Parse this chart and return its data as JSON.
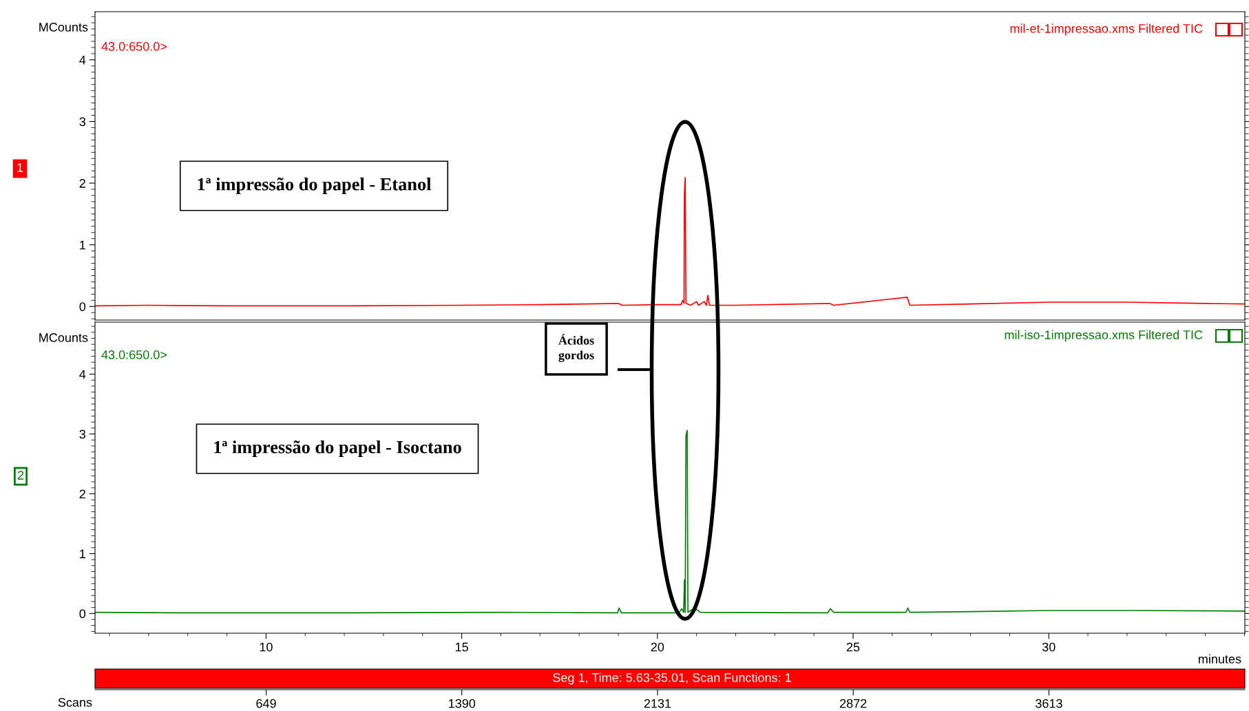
{
  "chart_data": [
    {
      "type": "line",
      "ylabel": "MCounts",
      "xlim": [
        5.63,
        35.01
      ],
      "xticks": [
        10,
        15,
        20,
        25,
        30
      ],
      "ylim": [
        -0.22,
        4.78
      ],
      "yticks": [
        0,
        1,
        2,
        3,
        4
      ],
      "tick_labels": "y",
      "grid": false,
      "legend": false,
      "annotations": [
        "43.0:650.0>",
        "mil-et-1impressao.xms Filtered TIC",
        "1",
        "1ª impressão do papel - Etanol"
      ],
      "series": [
        {
          "color": "#ff0000",
          "x": [
            5.63,
            7,
            9,
            12,
            15,
            17,
            19,
            19.1,
            20,
            20.6,
            20.65,
            20.68,
            20.69,
            20.71,
            20.73,
            20.85,
            21.0,
            21.05,
            21.2,
            21.25,
            21.29,
            21.33,
            22,
            24.4,
            24.5,
            26.38,
            26.45,
            28,
            30,
            32,
            34,
            35.01
          ],
          "values": [
            0.01,
            0.02,
            0.01,
            0.01,
            0.02,
            0.03,
            0.05,
            0.02,
            0.03,
            0.03,
            0.1,
            0.05,
            1.84,
            2.09,
            0.05,
            0.02,
            0.08,
            0.02,
            0.08,
            0.02,
            0.18,
            0.02,
            0.02,
            0.05,
            0.02,
            0.15,
            0.02,
            0.04,
            0.07,
            0.07,
            0.05,
            0.04
          ]
        }
      ]
    },
    {
      "type": "line",
      "ylabel": "MCounts",
      "xlabel": "minutes",
      "xlim": [
        5.63,
        35.01
      ],
      "xticks": [
        10,
        15,
        20,
        25,
        30
      ],
      "ylim": [
        -0.33,
        4.87
      ],
      "yticks": [
        0,
        1,
        2,
        3,
        4
      ],
      "x2lim": [
        1,
        4355
      ],
      "x2ticks": [
        649,
        1390,
        2131,
        2872,
        3613
      ],
      "x2label": "Scans",
      "grid": false,
      "legend": false,
      "annotations": [
        "43.0:650.0>",
        "mil-iso-1impressao.xms Filtered TIC",
        "2",
        "1ª impressão do papel - Isoctano",
        "Ácidos gordos",
        "Seg 1, Time: 5.63-35.01, Scan Functions: 1"
      ],
      "series": [
        {
          "color": "#008000",
          "x": [
            5.63,
            8,
            12,
            16,
            18.98,
            19.02,
            19.08,
            20.55,
            20.62,
            20.67,
            20.69,
            20.71,
            20.73,
            20.76,
            20.78,
            20.95,
            21.1,
            24.35,
            24.42,
            24.5,
            26.35,
            26.4,
            26.45,
            28,
            30,
            32,
            35.01
          ],
          "values": [
            0.02,
            0.01,
            0.01,
            0.02,
            0.01,
            0.09,
            0.01,
            0.01,
            0.08,
            0.02,
            0.56,
            0.02,
            2.97,
            3.06,
            0.02,
            0.09,
            0.02,
            0.01,
            0.08,
            0.02,
            0.02,
            0.09,
            0.02,
            0.03,
            0.05,
            0.05,
            0.04
          ]
        }
      ]
    }
  ]
}
